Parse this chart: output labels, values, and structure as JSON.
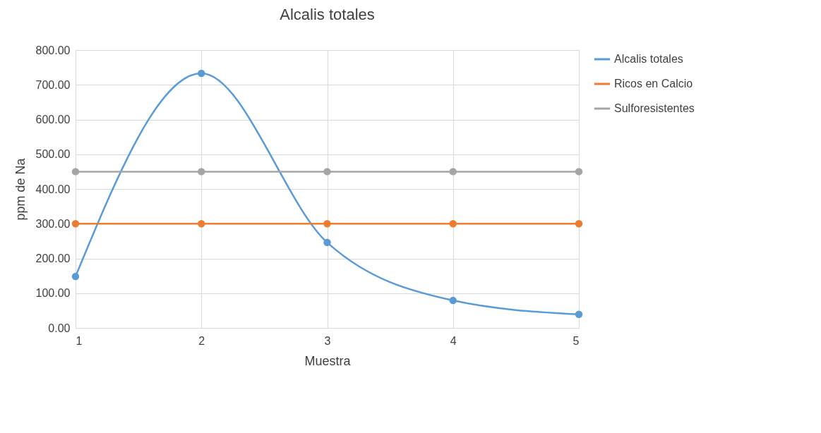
{
  "chart_data": {
    "type": "line",
    "title": "Alcalis totales",
    "xlabel": "Muestra",
    "ylabel": "ppm de Na",
    "x": [
      1,
      2,
      3,
      4,
      5
    ],
    "series": [
      {
        "name": "Alcalis totales",
        "color": "#5b9bd5",
        "values": [
          148,
          733,
          246,
          79,
          39
        ]
      },
      {
        "name": "Ricos en Calcio",
        "color": "#ed7d31",
        "values": [
          300,
          300,
          300,
          300,
          300
        ]
      },
      {
        "name": "Sulforesistentes",
        "color": "#a5a5a5",
        "values": [
          450,
          450,
          450,
          450,
          450
        ]
      }
    ],
    "xlim": [
      1,
      5
    ],
    "xticks": [
      1,
      2,
      3,
      4,
      5
    ],
    "ylim": [
      0,
      800
    ],
    "yticks": [
      {
        "value": 0,
        "label": "0.00"
      },
      {
        "value": 100,
        "label": "100.00"
      },
      {
        "value": 200,
        "label": "200.00"
      },
      {
        "value": 300,
        "label": "300.00"
      },
      {
        "value": 400,
        "label": "400.00"
      },
      {
        "value": 500,
        "label": "500.00"
      },
      {
        "value": 600,
        "label": "600.00"
      },
      {
        "value": 700,
        "label": "700.00"
      },
      {
        "value": 800,
        "label": "800.00"
      }
    ],
    "grid": true,
    "legend": "right",
    "marker": "circle",
    "line_style": "solid"
  }
}
